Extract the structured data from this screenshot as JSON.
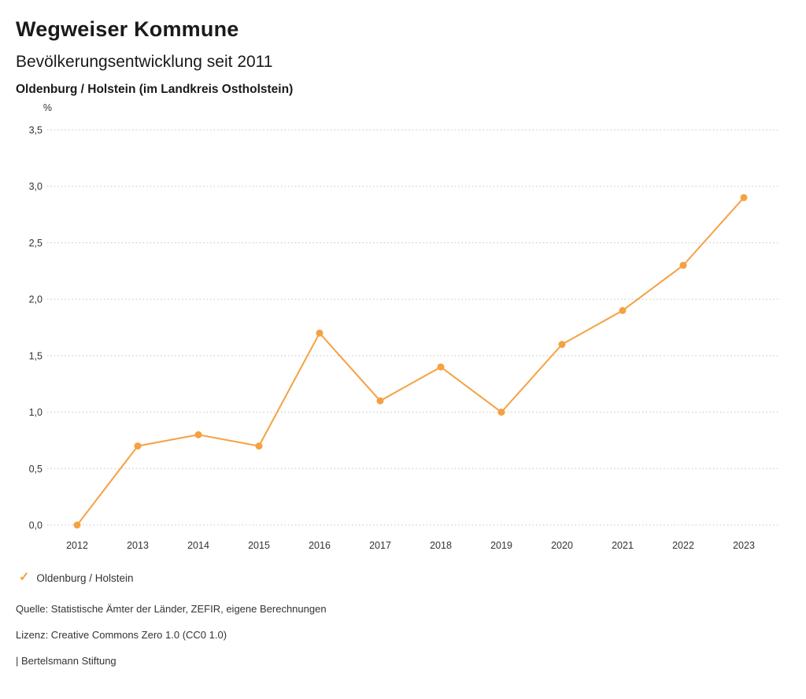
{
  "header": {
    "title": "Wegweiser Kommune",
    "subtitle": "Bevölkerungsentwicklung seit 2011",
    "region": "Oldenburg / Holstein (im Landkreis Ostholstein)"
  },
  "chart_data": {
    "type": "line",
    "title": "Bevölkerungsentwicklung seit 2011",
    "unit": "%",
    "x": [
      2012,
      2013,
      2014,
      2015,
      2016,
      2017,
      2018,
      2019,
      2020,
      2021,
      2022,
      2023
    ],
    "series": [
      {
        "name": "Oldenburg / Holstein",
        "values": [
          0.0,
          0.7,
          0.8,
          0.7,
          1.7,
          1.1,
          1.4,
          1.0,
          1.6,
          1.9,
          2.3,
          2.9
        ],
        "color": "#F5A142"
      }
    ],
    "ylim": [
      0,
      3.5
    ],
    "ytick_step": 0.5,
    "ytick_labels": [
      "0,0",
      "0,5",
      "1,0",
      "1,5",
      "2,0",
      "2,5",
      "3,0",
      "3,5"
    ],
    "grid": "horizontal-dotted",
    "grid_color": "#c4c4c4",
    "tick_text_color": "#333333",
    "legend_position": "bottom-left"
  },
  "legend": {
    "marker": "check-icon",
    "marker_glyph": "✓",
    "label": "Oldenburg / Holstein",
    "color": "#F5A142"
  },
  "footer": {
    "source": "Quelle: Statistische Ämter der Länder, ZEFIR, eigene Berechnungen",
    "license": "Lizenz: Creative Commons Zero 1.0 (CC0 1.0)",
    "branding": "| Bertelsmann Stiftung"
  }
}
